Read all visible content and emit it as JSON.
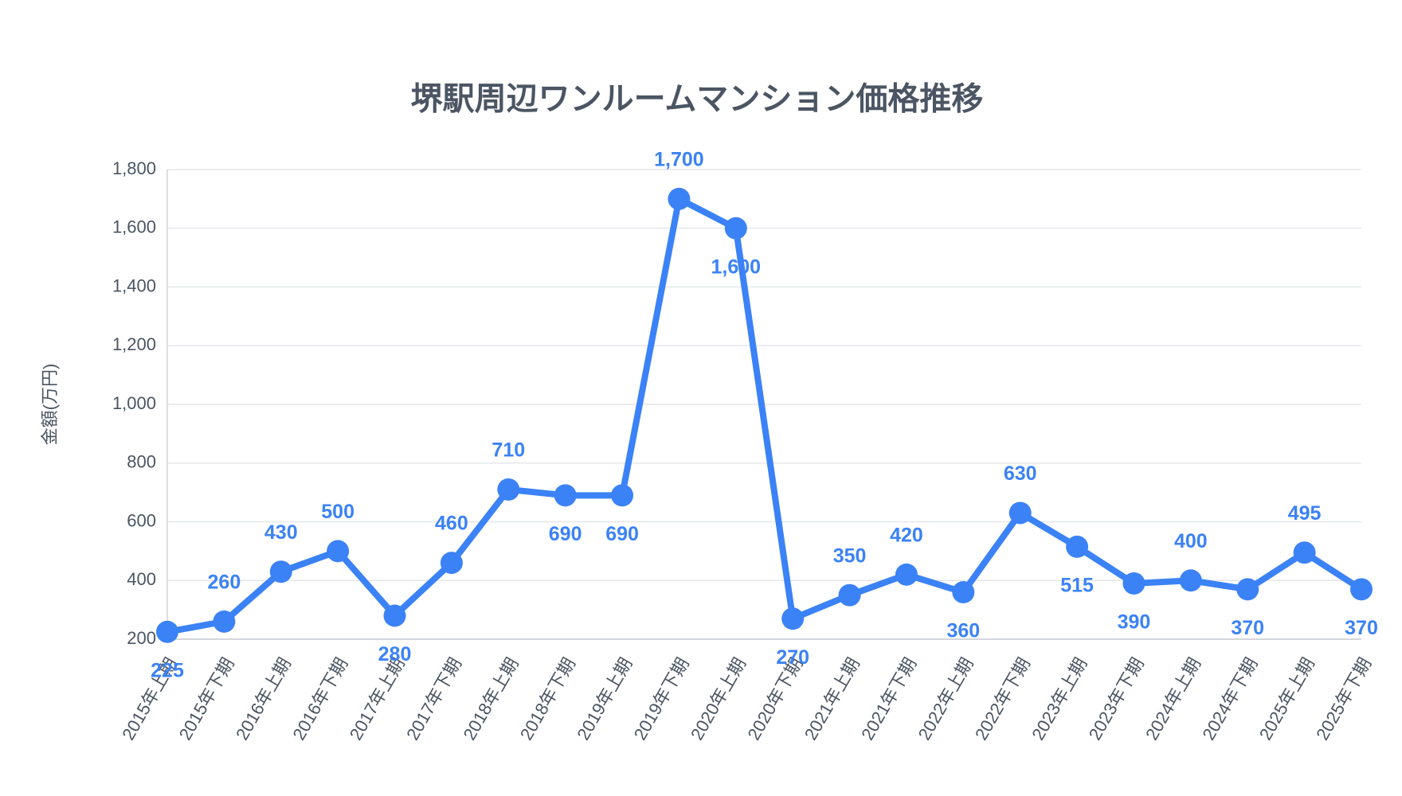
{
  "chart_data": {
    "type": "line",
    "title": "堺駅周辺ワンルームマンション価格推移",
    "y_label": "金額(万円)",
    "categories": [
      "2015年上期",
      "2015年下期",
      "2016年上期",
      "2016年下期",
      "2017年上期",
      "2017年下期",
      "2018年上期",
      "2018年下期",
      "2019年上期",
      "2019年下期",
      "2020年上期",
      "2020年下期",
      "2021年上期",
      "2021年下期",
      "2022年上期",
      "2022年下期",
      "2023年上期",
      "2023年下期",
      "2024年上期",
      "2024年下期",
      "2025年上期",
      "2025年下期"
    ],
    "series": [
      {
        "name": "金額",
        "color": "#3b82f6",
        "values": [
          225,
          260,
          430,
          500,
          280,
          460,
          710,
          690,
          690,
          1700,
          1600,
          270,
          350,
          420,
          360,
          630,
          515,
          390,
          400,
          370,
          495,
          370
        ],
        "value_labels": [
          "225",
          "260",
          "430",
          "500",
          "280",
          "460",
          "710",
          "690",
          "690",
          "1,700",
          "1,600",
          "270",
          "350",
          "420",
          "360",
          "630",
          "515",
          "390",
          "400",
          "370",
          "495",
          "370"
        ]
      }
    ],
    "ylim": [
      200,
      1800
    ],
    "yticks": [
      200,
      400,
      600,
      800,
      {
        "value": 1000,
        "label": "1,000"
      },
      {
        "value": 1200,
        "label": "1,200"
      },
      {
        "value": 1400,
        "label": "1,400"
      },
      {
        "value": 1600,
        "label": "1,600"
      },
      {
        "value": 1800,
        "label": "1,800"
      }
    ],
    "grid": true
  }
}
